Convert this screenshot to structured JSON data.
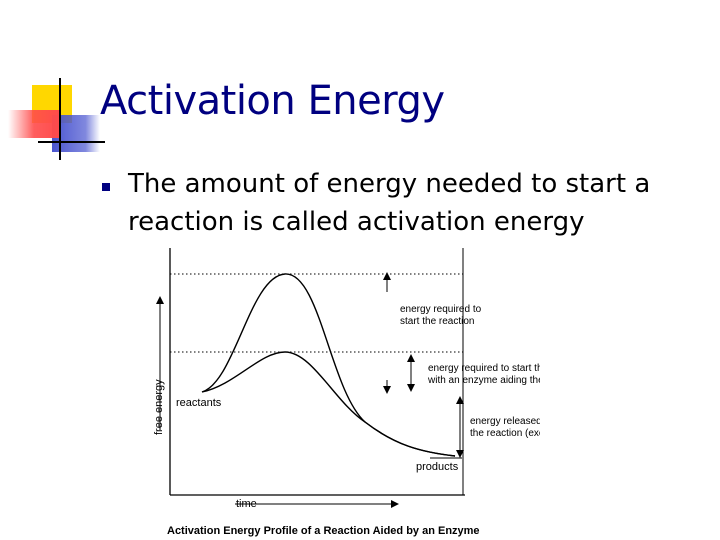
{
  "slide": {
    "title": "Activation Energy",
    "bullet": "The amount of energy needed to start a reaction is called activation energy"
  },
  "diagram": {
    "y_axis_label": "free energy",
    "x_axis_label": "time",
    "reactants_label": "reactants",
    "products_label": "products",
    "label_uncatalyzed_line1": "energy required to",
    "label_uncatalyzed_line2": "start the reaction",
    "label_enzyme_line1": "energy required to start the reaction",
    "label_enzyme_line2": "with an enzyme aiding the reaction",
    "label_released_line1": "energy released by",
    "label_released_line2": "the reaction (exergonic)",
    "caption": "Activation Energy Profile of a Reaction Aided by an Enzyme"
  },
  "colors": {
    "title": "#000080",
    "bullet_marker": "#000080",
    "logo_yellow": "#FFD700",
    "logo_red": "#FF4B4B",
    "logo_blue": "#4A55D0"
  },
  "icons": {
    "logo": "overlapping-squares-logo",
    "bullet": "square-bullet-icon"
  }
}
